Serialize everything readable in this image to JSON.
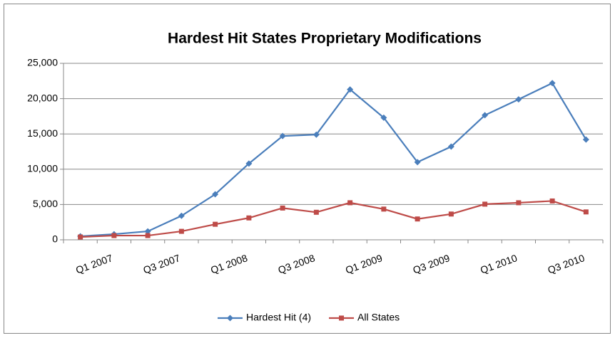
{
  "chart_data": {
    "type": "line",
    "title": "Hardest Hit States Proprietary Modifications",
    "categories": [
      "Q1 2007",
      null,
      "Q3 2007",
      null,
      "Q1 2008",
      null,
      "Q3 2008",
      null,
      "Q1 2009",
      null,
      "Q3 2009",
      null,
      "Q1 2010",
      null,
      "Q3 2010",
      null
    ],
    "series": [
      {
        "name": "Hardest Hit (4)",
        "color": "#4a7ebb",
        "marker": "diamond",
        "values": [
          500,
          800,
          1200,
          3400,
          6450,
          10800,
          14700,
          14900,
          21300,
          17300,
          11000,
          13200,
          17650,
          19900,
          22200,
          14200
        ]
      },
      {
        "name": "All States",
        "color": "#be4b48",
        "marker": "square",
        "values": [
          400,
          600,
          600,
          1200,
          2200,
          3100,
          4500,
          3900,
          5250,
          4350,
          2950,
          3650,
          5050,
          5250,
          5500,
          3950
        ]
      }
    ],
    "ylim": [
      0,
      25000
    ],
    "yticks": [
      0,
      {
        "value": 5000,
        "label": "5,000"
      },
      {
        "value": 10000,
        "label": "10,000"
      },
      {
        "value": 15000,
        "label": "15,000"
      },
      {
        "value": 20000,
        "label": "20,000"
      },
      {
        "value": 25000,
        "label": "25,000"
      }
    ],
    "grid": true,
    "legend": "bottom"
  }
}
